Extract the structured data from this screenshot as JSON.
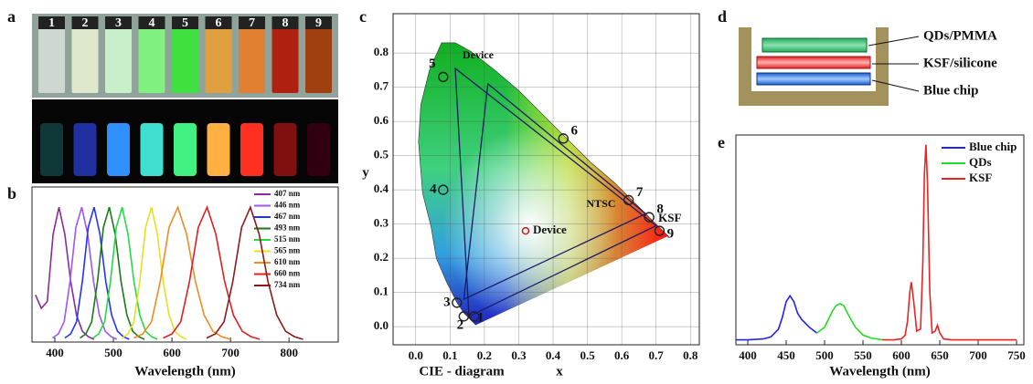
{
  "panels": {
    "a": "a",
    "b": "b",
    "c": "c",
    "d": "d",
    "e": "e"
  },
  "vials": {
    "labels": [
      "1",
      "2",
      "3",
      "4",
      "5",
      "6",
      "7",
      "8",
      "9"
    ]
  },
  "structure": {
    "layers": [
      "QDs/PMMA",
      "KSF/silicone",
      "Blue chip"
    ]
  },
  "chart_data": [
    {
      "type": "line",
      "x_label": "Wavelength (nm)",
      "xlim": [
        361,
        884
      ],
      "xticks": [
        400,
        500,
        600,
        700,
        800
      ],
      "ylim": [
        0,
        1.15
      ],
      "series": [
        {
          "name": "407 nm",
          "color": "#8b2a9e",
          "x": [
            367,
            377,
            387,
            397,
            407,
            417,
            427,
            437,
            447,
            457,
            467
          ],
          "values": [
            0.35,
            0.25,
            0.3,
            0.8,
            1.0,
            0.8,
            0.45,
            0.2,
            0.08,
            0.04,
            0.02
          ]
        },
        {
          "name": "446 nm",
          "color": "#9b59f0",
          "x": [
            396,
            406,
            416,
            426,
            436,
            446,
            456,
            466,
            476,
            486,
            496,
            506
          ],
          "values": [
            0.03,
            0.06,
            0.15,
            0.45,
            0.85,
            1.0,
            0.8,
            0.45,
            0.2,
            0.08,
            0.04,
            0.02
          ]
        },
        {
          "name": "467 nm",
          "color": "#2233ff",
          "x": [
            417,
            427,
            437,
            447,
            457,
            467,
            477,
            487,
            497,
            507,
            517,
            527
          ],
          "values": [
            0.03,
            0.06,
            0.15,
            0.45,
            0.85,
            1.0,
            0.8,
            0.45,
            0.2,
            0.08,
            0.04,
            0.02
          ]
        },
        {
          "name": "493 nm",
          "color": "#1a7a1a",
          "x": [
            443,
            453,
            463,
            473,
            483,
            493,
            503,
            513,
            523,
            533,
            543,
            553
          ],
          "values": [
            0.03,
            0.06,
            0.15,
            0.45,
            0.85,
            1.0,
            0.8,
            0.45,
            0.2,
            0.08,
            0.04,
            0.02
          ]
        },
        {
          "name": "515 nm",
          "color": "#22dd44",
          "x": [
            465,
            475,
            485,
            495,
            505,
            515,
            525,
            535,
            545,
            555,
            565,
            575
          ],
          "values": [
            0.03,
            0.06,
            0.15,
            0.45,
            0.85,
            1.0,
            0.8,
            0.45,
            0.2,
            0.08,
            0.04,
            0.02
          ]
        },
        {
          "name": "565 nm",
          "color": "#e8e020",
          "x": [
            515,
            525,
            535,
            545,
            555,
            565,
            575,
            585,
            595,
            605,
            615,
            625
          ],
          "values": [
            0.03,
            0.06,
            0.15,
            0.45,
            0.85,
            1.0,
            0.8,
            0.45,
            0.2,
            0.08,
            0.04,
            0.02
          ]
        },
        {
          "name": "610 nm",
          "color": "#f08c20",
          "x": [
            535,
            550,
            565,
            580,
            595,
            610,
            625,
            640,
            655,
            670,
            685,
            700
          ],
          "values": [
            0.03,
            0.06,
            0.15,
            0.45,
            0.85,
            1.0,
            0.8,
            0.45,
            0.2,
            0.08,
            0.04,
            0.02
          ]
        },
        {
          "name": "660 nm",
          "color": "#e02020",
          "x": [
            585,
            600,
            615,
            630,
            645,
            660,
            675,
            690,
            705,
            720,
            735,
            750
          ],
          "values": [
            0.03,
            0.06,
            0.15,
            0.45,
            0.85,
            1.0,
            0.8,
            0.45,
            0.2,
            0.08,
            0.04,
            0.02
          ]
        },
        {
          "name": "734 nm",
          "color": "#8b1a1a",
          "x": [
            659,
            674,
            689,
            704,
            719,
            734,
            749,
            764,
            779,
            794,
            809,
            824
          ],
          "values": [
            0.03,
            0.06,
            0.15,
            0.45,
            0.85,
            1.0,
            0.8,
            0.45,
            0.2,
            0.08,
            0.04,
            0.02
          ]
        }
      ]
    },
    {
      "type": "scatter",
      "x_label": "x",
      "y_label": "y",
      "caption": "CIE - diagram",
      "grid": true,
      "xlim": [
        -0.066,
        0.826
      ],
      "ylim": [
        -0.053,
        0.915
      ],
      "xticks": [
        {
          "value": 0,
          "label": "0.0"
        },
        {
          "value": 0.1,
          "label": "0.1"
        },
        {
          "value": 0.2,
          "label": "0.2"
        },
        {
          "value": 0.3,
          "label": "0.3"
        },
        {
          "value": 0.4,
          "label": "0.4"
        },
        {
          "value": 0.5,
          "label": "0.5"
        },
        {
          "value": 0.6,
          "label": "0.6"
        },
        {
          "value": 0.7,
          "label": "0.7"
        },
        {
          "value": 0.8,
          "label": "0.8"
        }
      ],
      "yticks": [
        {
          "value": 0,
          "label": "0.0"
        },
        {
          "value": 0.1,
          "label": "0.1"
        },
        {
          "value": 0.2,
          "label": "0.2"
        },
        {
          "value": 0.3,
          "label": "0.3"
        },
        {
          "value": 0.4,
          "label": "0.4"
        },
        {
          "value": 0.5,
          "label": "0.5"
        },
        {
          "value": 0.6,
          "label": "0.6"
        },
        {
          "value": 0.7,
          "label": "0.7"
        },
        {
          "value": 0.8,
          "label": "0.8"
        }
      ],
      "spectral_locus": {
        "x": [
          0.175,
          0.17,
          0.16,
          0.14,
          0.12,
          0.09,
          0.06,
          0.045,
          0.02,
          0.008,
          0.015,
          0.04,
          0.075,
          0.115,
          0.16,
          0.23,
          0.3,
          0.37,
          0.44,
          0.51,
          0.58,
          0.64,
          0.69,
          0.735
        ],
        "y": [
          0.005,
          0.01,
          0.02,
          0.04,
          0.07,
          0.13,
          0.2,
          0.29,
          0.39,
          0.54,
          0.65,
          0.75,
          0.83,
          0.83,
          0.805,
          0.75,
          0.69,
          0.62,
          0.55,
          0.48,
          0.42,
          0.36,
          0.31,
          0.265
        ]
      },
      "triangles": [
        {
          "name": "Device",
          "color": "#1a1a66",
          "x": [
            0.115,
            0.7,
            0.155
          ],
          "y": [
            0.755,
            0.295,
            0.03
          ]
        },
        {
          "name": "NTSC",
          "color": "#1a1a66",
          "x": [
            0.67,
            0.21,
            0.14
          ],
          "y": [
            0.33,
            0.71,
            0.08
          ]
        }
      ],
      "points": {
        "labels": [
          "1",
          "2",
          "3",
          "4",
          "5",
          "6",
          "7",
          "8",
          "9"
        ],
        "color": "#222222",
        "x": [
          0.17,
          0.14,
          0.12,
          0.08,
          0.08,
          0.43,
          0.62,
          0.68,
          0.71
        ],
        "y": [
          0.03,
          0.03,
          0.07,
          0.4,
          0.73,
          0.55,
          0.37,
          0.32,
          0.28
        ]
      },
      "device_point": {
        "label": "Device",
        "color": "#e01010",
        "x": 0.32,
        "y": 0.28
      },
      "annotation": "KSF"
    },
    {
      "type": "line",
      "x_label": "Wavelength (nm)",
      "xlim": [
        384.5,
        759.5
      ],
      "xticks": [
        400,
        450,
        500,
        550,
        600,
        650,
        700,
        750
      ],
      "ylim": [
        -0.02,
        1.05
      ],
      "series": [
        {
          "name": "Blue chip",
          "color": "#2222ee",
          "x": [
            385,
            400,
            420,
            430,
            440,
            445,
            450,
            455,
            460,
            465,
            470,
            480,
            490
          ],
          "values": [
            0.005,
            0.005,
            0.01,
            0.02,
            0.06,
            0.12,
            0.2,
            0.23,
            0.2,
            0.14,
            0.11,
            0.07,
            0.04
          ]
        },
        {
          "name": "QDs",
          "color": "#22dd22",
          "x": [
            490,
            500,
            505,
            510,
            515,
            520,
            525,
            530,
            540,
            550,
            560,
            575
          ],
          "values": [
            0.04,
            0.07,
            0.11,
            0.15,
            0.18,
            0.19,
            0.18,
            0.14,
            0.07,
            0.03,
            0.015,
            0.005
          ]
        },
        {
          "name": "KSF",
          "color": "#ee2222",
          "x": [
            575,
            590,
            600,
            605,
            608,
            611,
            613,
            616,
            620,
            625,
            628,
            630,
            632,
            634,
            637,
            640,
            644,
            647,
            650,
            655,
            665,
            690,
            720,
            750
          ],
          "values": [
            0.005,
            0.005,
            0.01,
            0.03,
            0.1,
            0.25,
            0.3,
            0.2,
            0.05,
            0.06,
            0.4,
            0.85,
            1.0,
            0.8,
            0.25,
            0.04,
            0.05,
            0.08,
            0.04,
            0.01,
            0.005,
            0.005,
            0.005,
            0.005
          ]
        }
      ]
    }
  ]
}
